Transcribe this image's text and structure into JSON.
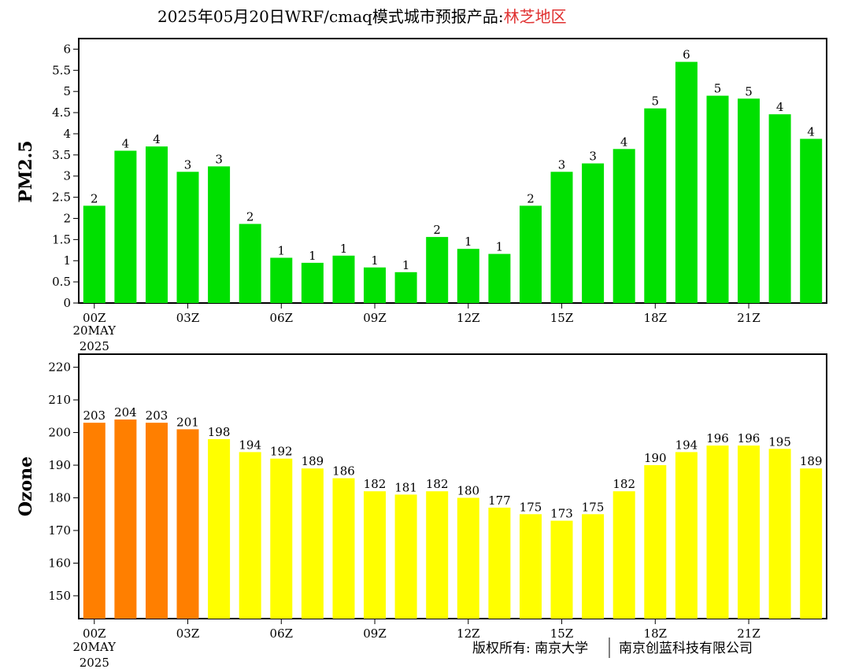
{
  "title": {
    "main": "2025年05月20日WRF/cmaq模式城市预报产品:",
    "region": "林芝地区",
    "region_color": "#e03030"
  },
  "footer": {
    "copyright": "版权所有: 南京大学",
    "company": "南京创蓝科技有限公司"
  },
  "chart_data": [
    {
      "type": "bar",
      "ylabel": "PM2.5",
      "ylim": [
        0,
        6.25
      ],
      "yticks": [
        "0",
        "0.5",
        "1",
        "1.5",
        "2",
        "2.5",
        "3",
        "3.5",
        "4",
        "4.5",
        "5",
        "5.5",
        "6"
      ],
      "xticks": [
        "00Z",
        "03Z",
        "06Z",
        "09Z",
        "12Z",
        "15Z",
        "18Z",
        "21Z"
      ],
      "x_date_line1": "20MAY",
      "x_date_line2": "2025",
      "values": [
        2.3,
        3.6,
        3.7,
        3.1,
        3.23,
        1.87,
        1.07,
        0.95,
        1.12,
        0.84,
        0.73,
        1.56,
        1.28,
        1.16,
        2.3,
        3.1,
        3.3,
        3.64,
        4.6,
        5.7,
        4.9,
        4.83,
        4.46,
        3.88
      ],
      "labels": [
        "2",
        "4",
        "4",
        "3",
        "3",
        "2",
        "1",
        "1",
        "1",
        "1",
        "1",
        "2",
        "1",
        "1",
        "2",
        "3",
        "3",
        "4",
        "5",
        "6",
        "5",
        "5",
        "4",
        "4"
      ],
      "colors": [
        "#00e000"
      ],
      "grid": false
    },
    {
      "type": "bar",
      "ylabel": "Ozone",
      "ylim": [
        143,
        224
      ],
      "yticks": [
        "150",
        "160",
        "170",
        "180",
        "190",
        "200",
        "210",
        "220"
      ],
      "xticks": [
        "00Z",
        "03Z",
        "06Z",
        "09Z",
        "12Z",
        "15Z",
        "18Z",
        "21Z"
      ],
      "x_date_line1": "20MAY",
      "x_date_line2": "2025",
      "values": [
        203,
        204,
        203,
        201,
        198,
        194,
        192,
        189,
        186,
        182,
        181,
        182,
        180,
        177,
        175,
        173,
        175,
        182,
        190,
        194,
        196,
        196,
        195,
        189
      ],
      "labels": [
        "203",
        "204",
        "203",
        "201",
        "198",
        "194",
        "192",
        "189",
        "186",
        "182",
        "181",
        "182",
        "180",
        "177",
        "175",
        "173",
        "175",
        "182",
        "190",
        "194",
        "196",
        "196",
        "195",
        "189"
      ],
      "colors": [
        "#ff7f00",
        "#ff7f00",
        "#ff7f00",
        "#ff7f00",
        "#ffff00",
        "#ffff00",
        "#ffff00",
        "#ffff00",
        "#ffff00",
        "#ffff00",
        "#ffff00",
        "#ffff00",
        "#ffff00",
        "#ffff00",
        "#ffff00",
        "#ffff00",
        "#ffff00",
        "#ffff00",
        "#ffff00",
        "#ffff00",
        "#ffff00",
        "#ffff00",
        "#ffff00",
        "#ffff00"
      ],
      "grid": false
    }
  ]
}
